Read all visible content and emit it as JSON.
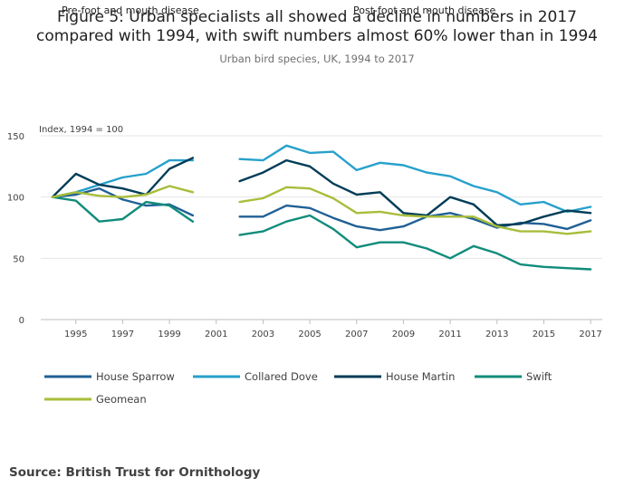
{
  "chart_data": {
    "type": "line",
    "title_lines": [
      "Figure 5: Urban specialists all showed a decline in numbers in 2017",
      "compared with 1994, with swift numbers almost 60% lower than in 1994"
    ],
    "subtitle": "Urban bird species, UK, 1994 to 2017",
    "ylabel": "Index, 1994 = 100",
    "annotations": [
      "Pre-foot and mouth disease",
      "Post-foot and mouth disease"
    ],
    "xlim": [
      1993.5,
      2017.5
    ],
    "ylim": [
      0,
      150
    ],
    "x_ticks": [
      1995,
      1997,
      1999,
      2001,
      2003,
      2005,
      2007,
      2009,
      2011,
      2013,
      2015,
      2017
    ],
    "y_ticks": [
      0,
      50,
      100,
      150
    ],
    "grid": true,
    "legend_position": "bottom",
    "x": [
      1994,
      1995,
      1996,
      1997,
      1998,
      1999,
      2000,
      2001,
      2002,
      2003,
      2004,
      2005,
      2006,
      2007,
      2008,
      2009,
      2010,
      2011,
      2012,
      2013,
      2014,
      2015,
      2016,
      2017
    ],
    "series": [
      {
        "name": "House Sparrow",
        "color": "#206095",
        "values": [
          100,
          102,
          107,
          98,
          93,
          94,
          85,
          null,
          84,
          84,
          93,
          91,
          83,
          76,
          73,
          76,
          84,
          87,
          82,
          75,
          79,
          78,
          74,
          81
        ]
      },
      {
        "name": "Collared Dove",
        "color": "#27a0cc",
        "values": [
          100,
          104,
          110,
          116,
          119,
          130,
          130,
          null,
          131,
          130,
          142,
          136,
          137,
          122,
          128,
          126,
          120,
          117,
          109,
          104,
          94,
          96,
          88,
          92
        ]
      },
      {
        "name": "House Martin",
        "color": "#003c57",
        "values": [
          100,
          119,
          110,
          107,
          102,
          123,
          132,
          null,
          113,
          120,
          130,
          125,
          111,
          102,
          104,
          87,
          85,
          100,
          94,
          77,
          78,
          84,
          89,
          87
        ]
      },
      {
        "name": "Swift",
        "color": "#118c7b",
        "values": [
          100,
          97,
          80,
          82,
          96,
          93,
          80,
          null,
          69,
          72,
          80,
          85,
          74,
          59,
          63,
          63,
          58,
          50,
          60,
          54,
          45,
          43,
          42,
          41
        ]
      },
      {
        "name": "Geomean",
        "color": "#a8bd3a",
        "values": [
          100,
          104,
          101,
          100,
          102,
          109,
          104,
          null,
          96,
          99,
          108,
          107,
          99,
          87,
          88,
          85,
          84,
          84,
          84,
          76,
          72,
          72,
          70,
          72
        ]
      }
    ]
  },
  "source": "Source: British Trust for Ornithology"
}
